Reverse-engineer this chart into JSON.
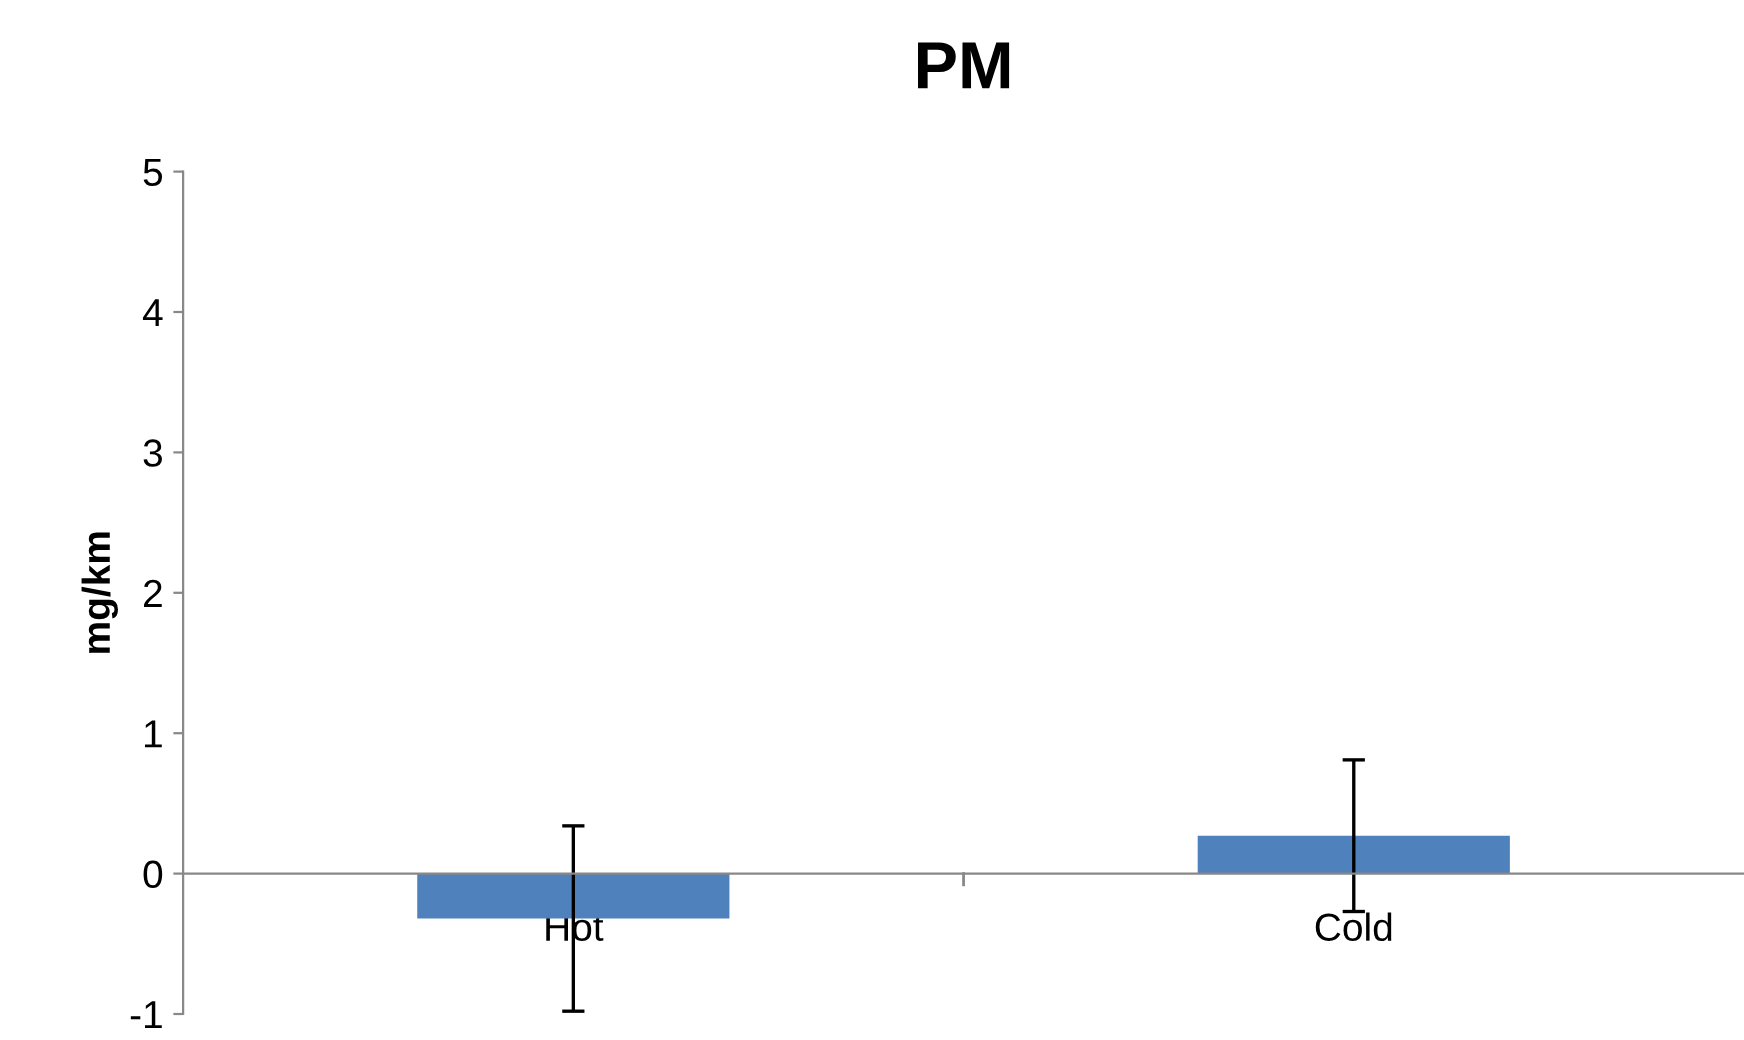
{
  "chart_data": {
    "type": "bar",
    "title": "PM",
    "ylabel": "mg/km",
    "categories": [
      "Hot",
      "Cold"
    ],
    "values": [
      -0.32,
      0.27
    ],
    "errors": [
      0.66,
      0.54
    ],
    "color": "#4f81bd",
    "ylim": [
      -1,
      5
    ],
    "yticks": [
      -1,
      0,
      1,
      2,
      3,
      4,
      5
    ],
    "grid": false,
    "legend": false
  }
}
